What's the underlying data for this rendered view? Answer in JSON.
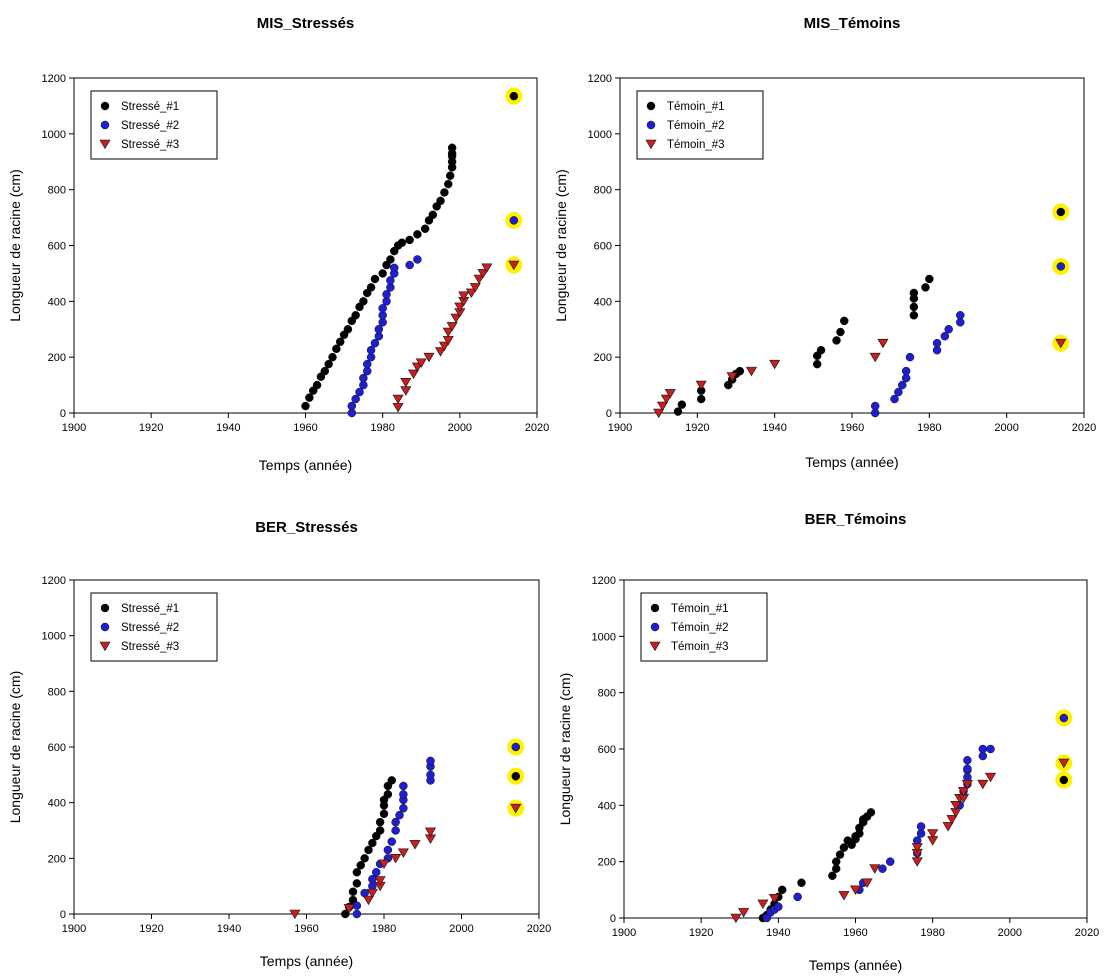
{
  "colors": {
    "series1": "#000000",
    "series2": "#1f1fd0",
    "series3": "#c81e1e",
    "highlight": "#fff200"
  },
  "chart_data": [
    {
      "type": "scatter",
      "title": "MIS_Stressés",
      "xlabel": "Temps (année)",
      "ylabel": "Longueur de racine (cm)",
      "xlim": [
        1900,
        2020
      ],
      "ylim": [
        0,
        1200
      ],
      "xticks": [
        1900,
        1920,
        1940,
        1960,
        1980,
        2000,
        2020
      ],
      "yticks": [
        0,
        200,
        400,
        600,
        800,
        1000,
        1200
      ],
      "legend_position": "top-left",
      "series": [
        {
          "name": "Stressé_#1",
          "marker": "circle",
          "color": "#000000",
          "x": [
            1960,
            1961,
            1962,
            1963,
            1964,
            1965,
            1966,
            1967,
            1968,
            1969,
            1970,
            1971,
            1972,
            1973,
            1974,
            1975,
            1976,
            1977,
            1978,
            1980,
            1981,
            1982,
            1983,
            1984,
            1985,
            1987,
            1989,
            1991,
            1992,
            1993,
            1994,
            1995,
            1996,
            1997,
            1997.5,
            1998,
            1998,
            1998,
            1998,
            1998
          ],
          "y": [
            25,
            55,
            80,
            100,
            130,
            150,
            175,
            200,
            230,
            255,
            280,
            300,
            330,
            350,
            380,
            400,
            430,
            450,
            480,
            500,
            530,
            550,
            580,
            600,
            610,
            620,
            640,
            660,
            690,
            710,
            740,
            760,
            790,
            820,
            850,
            880,
            900,
            920,
            930,
            950
          ]
        },
        {
          "name": "Stressé_#2",
          "marker": "circle",
          "color": "#1f1fd0",
          "x": [
            1972,
            1972,
            1973,
            1974,
            1975,
            1975,
            1976,
            1976,
            1977,
            1977,
            1978,
            1979,
            1979,
            1980,
            1980,
            1980,
            1981,
            1981,
            1982,
            1982,
            1983,
            1983,
            1987,
            1989
          ],
          "y": [
            0,
            25,
            50,
            75,
            100,
            125,
            150,
            175,
            200,
            225,
            250,
            275,
            300,
            325,
            350,
            375,
            400,
            425,
            450,
            475,
            500,
            520,
            530,
            550
          ]
        },
        {
          "name": "Stressé_#3",
          "marker": "triangle-down",
          "color": "#c81e1e",
          "x": [
            1984,
            1984,
            1986,
            1986,
            1988,
            1989,
            1990,
            1992,
            1995,
            1996,
            1997,
            1997,
            1998,
            1999,
            2000,
            2000,
            2001,
            2001,
            2003,
            2004,
            2005,
            2006,
            2007
          ],
          "y": [
            20,
            50,
            80,
            110,
            140,
            165,
            180,
            200,
            220,
            240,
            260,
            290,
            310,
            340,
            360,
            380,
            400,
            420,
            430,
            450,
            480,
            500,
            520
          ]
        }
      ],
      "highlights": [
        {
          "series": "Stressé_#1",
          "x": 2014,
          "y": 1135
        },
        {
          "series": "Stressé_#2",
          "x": 2014,
          "y": 690
        },
        {
          "series": "Stressé_#3",
          "x": 2014,
          "y": 530
        }
      ]
    },
    {
      "type": "scatter",
      "title": "MIS_Témoins",
      "xlabel": "Temps (année)",
      "ylabel": "Longueur de racine (cm)",
      "xlim": [
        1900,
        2020
      ],
      "ylim": [
        0,
        1200
      ],
      "xticks": [
        1900,
        1920,
        1940,
        1960,
        1980,
        2000,
        2020
      ],
      "yticks": [
        0,
        200,
        400,
        600,
        800,
        1000,
        1200
      ],
      "legend_position": "top-left",
      "series": [
        {
          "name": "Témoin_#1",
          "marker": "circle",
          "color": "#000000",
          "x": [
            1915,
            1916,
            1921,
            1921,
            1928,
            1929,
            1930,
            1931,
            1951,
            1951,
            1952,
            1956,
            1957,
            1958,
            1976,
            1976,
            1976,
            1976,
            1979,
            1980
          ],
          "y": [
            5,
            30,
            50,
            80,
            100,
            120,
            140,
            150,
            175,
            205,
            225,
            260,
            290,
            330,
            350,
            380,
            410,
            430,
            450,
            480
          ]
        },
        {
          "name": "Témoin_#2",
          "marker": "circle",
          "color": "#1f1fd0",
          "x": [
            1966,
            1966,
            1971,
            1972,
            1973,
            1974,
            1974,
            1975,
            1982,
            1982,
            1984,
            1985,
            1988,
            1988
          ],
          "y": [
            0,
            25,
            50,
            75,
            100,
            125,
            150,
            200,
            225,
            250,
            275,
            300,
            325,
            350
          ]
        },
        {
          "name": "Témoin_#3",
          "marker": "triangle-down",
          "color": "#c81e1e",
          "x": [
            1910,
            1911,
            1912,
            1913,
            1921,
            1929,
            1934,
            1940,
            1966,
            1968
          ],
          "y": [
            0,
            25,
            50,
            70,
            100,
            130,
            150,
            175,
            200,
            250
          ]
        }
      ],
      "highlights": [
        {
          "series": "Témoin_#1",
          "x": 2014,
          "y": 720
        },
        {
          "series": "Témoin_#2",
          "x": 2014,
          "y": 525
        },
        {
          "series": "Témoin_#3",
          "x": 2014,
          "y": 250
        }
      ]
    },
    {
      "type": "scatter",
      "title": "BER_Stressés",
      "xlabel": "Temps (année)",
      "ylabel": "Longueur de racine (cm)",
      "xlim": [
        1900,
        2020
      ],
      "ylim": [
        0,
        1200
      ],
      "xticks": [
        1900,
        1920,
        1940,
        1960,
        1980,
        2000,
        2020
      ],
      "yticks": [
        0,
        200,
        400,
        600,
        800,
        1000,
        1200
      ],
      "legend_position": "top-left",
      "series": [
        {
          "name": "Stressé_#1",
          "marker": "circle",
          "color": "#000000",
          "x": [
            1970,
            1971,
            1972,
            1972,
            1973,
            1973,
            1974,
            1975,
            1976,
            1977,
            1978,
            1979,
            1979,
            1980,
            1980,
            1980,
            1981,
            1981,
            1982
          ],
          "y": [
            0,
            25,
            50,
            80,
            110,
            150,
            175,
            200,
            230,
            255,
            280,
            300,
            330,
            360,
            390,
            410,
            430,
            460,
            480
          ]
        },
        {
          "name": "Stressé_#2",
          "marker": "circle",
          "color": "#1f1fd0",
          "x": [
            1973,
            1973,
            1975,
            1977,
            1977,
            1978,
            1979,
            1981,
            1981,
            1982,
            1983,
            1983,
            1984,
            1985,
            1985,
            1985,
            1985,
            1992,
            1992,
            1992,
            1992
          ],
          "y": [
            0,
            30,
            75,
            100,
            125,
            150,
            180,
            200,
            230,
            260,
            300,
            330,
            355,
            380,
            410,
            430,
            460,
            480,
            500,
            530,
            550
          ]
        },
        {
          "name": "Stressé_#3",
          "marker": "triangle-down",
          "color": "#c81e1e",
          "x": [
            1957,
            1971,
            1976,
            1977,
            1979,
            1979,
            1980,
            1983,
            1985,
            1988,
            1992,
            1992
          ],
          "y": [
            0,
            20,
            50,
            75,
            100,
            120,
            180,
            200,
            220,
            250,
            270,
            295
          ]
        }
      ],
      "highlights": [
        {
          "series": "Stressé_#2",
          "x": 2014,
          "y": 600
        },
        {
          "series": "Stressé_#1",
          "x": 2014,
          "y": 495
        },
        {
          "series": "Stressé_#3",
          "x": 2014,
          "y": 380
        }
      ]
    },
    {
      "type": "scatter",
      "title": "BER_Témoins",
      "xlabel": "Temps (année)",
      "ylabel": "Longueur de racine (cm)",
      "xlim": [
        1900,
        2020
      ],
      "ylim": [
        0,
        1200
      ],
      "xticks": [
        1900,
        1920,
        1940,
        1960,
        1980,
        2000,
        2020
      ],
      "yticks": [
        0,
        200,
        400,
        600,
        800,
        1000,
        1200
      ],
      "legend_position": "top-left",
      "series": [
        {
          "name": "Témoin_#1",
          "marker": "circle",
          "color": "#000000",
          "x": [
            1936,
            1937,
            1938,
            1939,
            1940,
            1941,
            1946,
            1954,
            1955,
            1955,
            1956,
            1957,
            1958,
            1959,
            1960,
            1960,
            1961,
            1961,
            1962,
            1962,
            1963,
            1964
          ],
          "y": [
            0,
            10,
            30,
            50,
            75,
            100,
            125,
            150,
            175,
            200,
            225,
            250,
            275,
            260,
            280,
            290,
            300,
            320,
            340,
            350,
            360,
            375
          ]
        },
        {
          "name": "Témoin_#2",
          "marker": "circle",
          "color": "#1f1fd0",
          "x": [
            1937,
            1938,
            1939,
            1940,
            1945,
            1961,
            1962,
            1967,
            1969,
            1976,
            1976,
            1977,
            1977,
            1987,
            1988,
            1989,
            1989,
            1989,
            1989,
            1989,
            1993,
            1993,
            1995
          ],
          "y": [
            0,
            20,
            30,
            40,
            75,
            100,
            125,
            175,
            200,
            230,
            275,
            300,
            325,
            400,
            450,
            475,
            500,
            525,
            530,
            560,
            575,
            600,
            600
          ]
        },
        {
          "name": "Témoin_#3",
          "marker": "triangle-down",
          "color": "#c81e1e",
          "x": [
            1929,
            1931,
            1936,
            1939,
            1957,
            1960,
            1963,
            1965,
            1976,
            1976,
            1976,
            1980,
            1980,
            1984,
            1985,
            1986,
            1986,
            1987,
            1988,
            1988,
            1989,
            1993,
            1995
          ],
          "y": [
            0,
            20,
            50,
            70,
            80,
            100,
            125,
            175,
            200,
            230,
            250,
            275,
            300,
            325,
            350,
            375,
            400,
            425,
            425,
            450,
            475,
            475,
            500
          ]
        }
      ],
      "highlights": [
        {
          "series": "Témoin_#2",
          "x": 2014,
          "y": 710
        },
        {
          "series": "Témoin_#3",
          "x": 2014,
          "y": 550
        },
        {
          "series": "Témoin_#1",
          "x": 2014,
          "y": 490
        }
      ]
    }
  ]
}
